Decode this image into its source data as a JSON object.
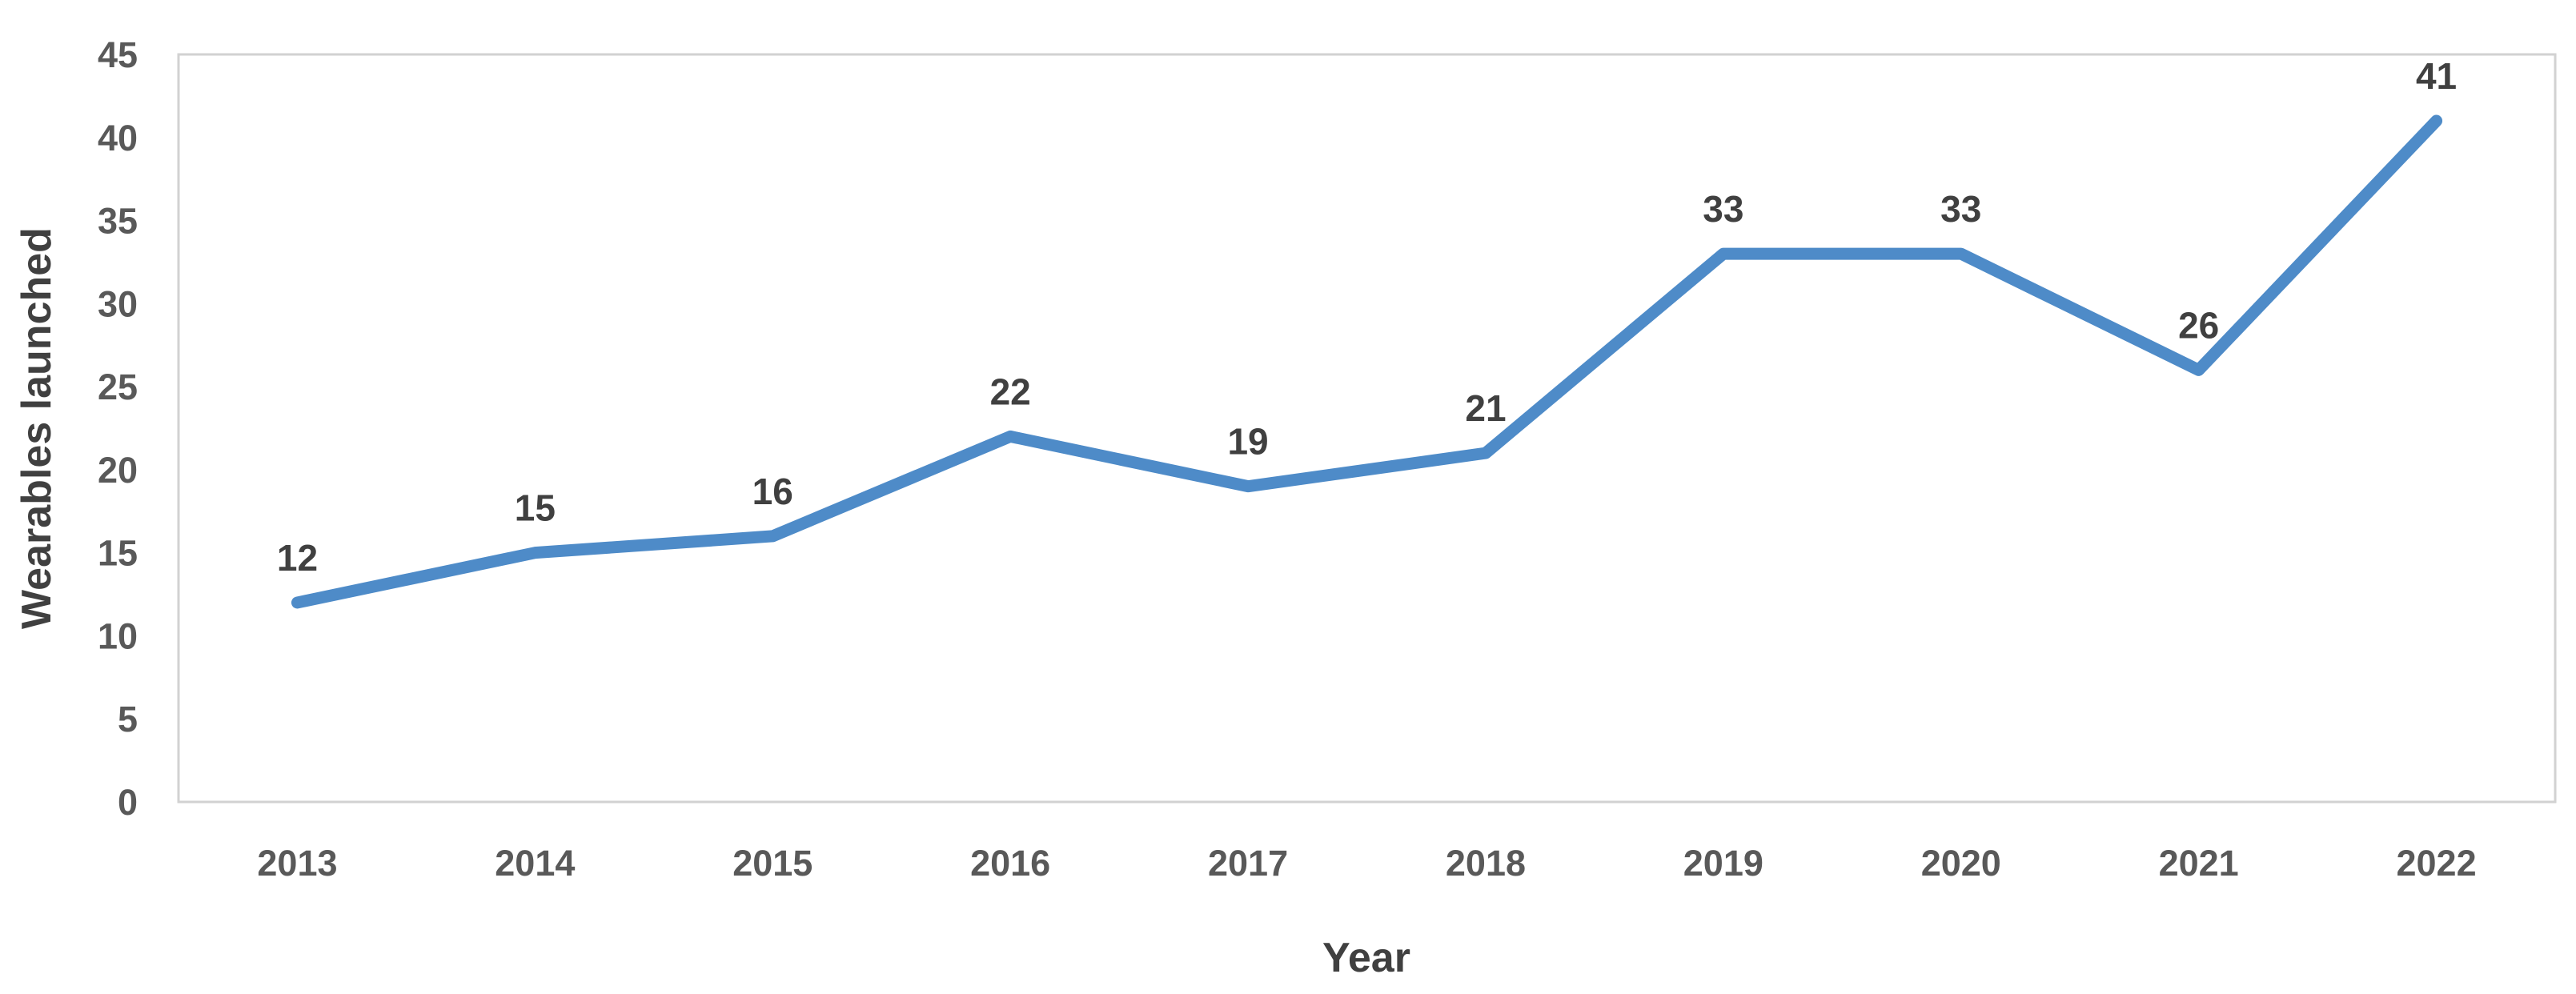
{
  "chart_data": {
    "type": "line",
    "title": "",
    "xlabel": "Year",
    "ylabel": "Wearables launched",
    "categories": [
      "2013",
      "2014",
      "2015",
      "2016",
      "2017",
      "2018",
      "2019",
      "2020",
      "2021",
      "2022"
    ],
    "series": [
      {
        "name": "Wearables launched",
        "values": [
          12,
          15,
          16,
          22,
          19,
          21,
          33,
          33,
          26,
          41
        ]
      }
    ],
    "data_labels": [
      "12",
      "15",
      "16",
      "22",
      "19",
      "21",
      "33",
      "33",
      "26",
      "41"
    ],
    "ylim": [
      0,
      45
    ],
    "yticks": [
      0,
      5,
      10,
      15,
      20,
      25,
      30,
      35,
      40,
      45
    ],
    "grid": false,
    "legend": false,
    "colors": {
      "line": "#4E8BC8",
      "data_label": "#404040",
      "tick_label": "#595959",
      "axis_title": "#404040",
      "plot_border": "#D2D2D2",
      "background": "#FFFFFF"
    }
  }
}
